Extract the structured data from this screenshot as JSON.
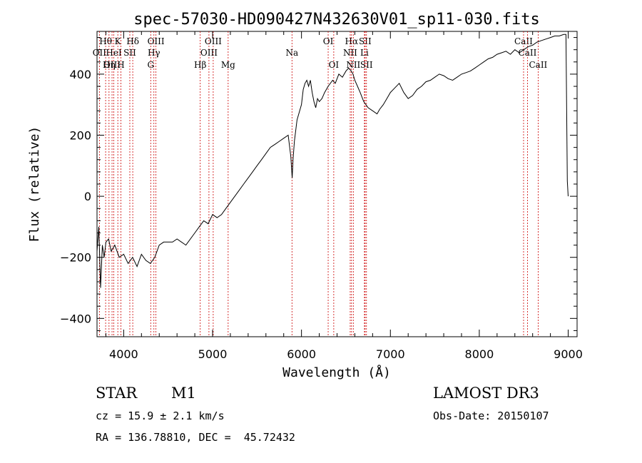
{
  "chart_data": {
    "type": "line",
    "title": "spec-57030-HD090427N432630V01_sp11-030.fits",
    "xlabel": "Wavelength (Å)",
    "ylabel": "Flux (relative)",
    "xlim": [
      3700,
      9100
    ],
    "ylim": [
      -460,
      540
    ],
    "x_ticks": [
      4000,
      5000,
      6000,
      7000,
      8000,
      9000
    ],
    "y_ticks": [
      -400,
      -200,
      0,
      200,
      400
    ],
    "grid": false,
    "line_color": "#000000",
    "marker_color": "#cc0000",
    "series": [
      {
        "x": [
          3700,
          3720,
          3740,
          3760,
          3780,
          3800,
          3830,
          3860,
          3900,
          3950,
          4000,
          4050,
          4100,
          4150,
          4200,
          4250,
          4300,
          4350,
          4400,
          4450,
          4500,
          4550,
          4600,
          4700,
          4800,
          4850,
          4900,
          4950,
          5000,
          5050,
          5100,
          5150,
          5200,
          5250,
          5300,
          5350,
          5400,
          5450,
          5500,
          5550,
          5600,
          5650,
          5700,
          5750,
          5800,
          5850,
          5880,
          5895,
          5905,
          5920,
          5950,
          6000,
          6020,
          6040,
          6060,
          6080,
          6100,
          6120,
          6140,
          6160,
          6180,
          6200,
          6230,
          6260,
          6300,
          6350,
          6380,
          6420,
          6460,
          6500,
          6530,
          6560,
          6580,
          6600,
          6630,
          6660,
          6700,
          6750,
          6800,
          6850,
          6880,
          6920,
          6960,
          7000,
          7050,
          7100,
          7150,
          7200,
          7250,
          7300,
          7350,
          7400,
          7450,
          7500,
          7550,
          7600,
          7650,
          7700,
          7750,
          7800,
          7850,
          7900,
          7950,
          8000,
          8050,
          8100,
          8150,
          8200,
          8250,
          8300,
          8350,
          8400,
          8450,
          8500,
          8550,
          8600,
          8650,
          8700,
          8750,
          8800,
          8850,
          8900,
          8950,
          8975,
          8985,
          8990,
          9000
        ],
        "y": [
          -180,
          -100,
          -300,
          -160,
          -200,
          -150,
          -140,
          -180,
          -160,
          -200,
          -190,
          -220,
          -200,
          -230,
          -190,
          -210,
          -220,
          -200,
          -160,
          -150,
          -150,
          -150,
          -140,
          -160,
          -120,
          -100,
          -80,
          -90,
          -60,
          -70,
          -60,
          -40,
          -20,
          0,
          20,
          40,
          60,
          80,
          100,
          120,
          140,
          160,
          170,
          180,
          190,
          200,
          130,
          60,
          120,
          180,
          250,
          300,
          350,
          370,
          380,
          360,
          380,
          340,
          310,
          290,
          320,
          310,
          320,
          340,
          360,
          380,
          370,
          400,
          390,
          410,
          420,
          410,
          400,
          380,
          360,
          340,
          310,
          290,
          280,
          270,
          285,
          300,
          320,
          340,
          355,
          370,
          340,
          320,
          330,
          350,
          360,
          375,
          380,
          390,
          400,
          395,
          385,
          380,
          390,
          400,
          405,
          410,
          420,
          430,
          440,
          450,
          455,
          465,
          470,
          475,
          465,
          480,
          470,
          480,
          490,
          495,
          505,
          510,
          515,
          520,
          525,
          525,
          530,
          530,
          200,
          50,
          0
        ]
      }
    ],
    "line_markers": [
      {
        "label": "Hθ",
        "x": 3797,
        "row": 1
      },
      {
        "label": "OII",
        "x": 3727,
        "row": 2
      },
      {
        "label": "OIII",
        "x": 3869,
        "row": 3
      },
      {
        "label": "HeI",
        "x": 3889,
        "row": 2
      },
      {
        "label": "Hη",
        "x": 3835,
        "row": 3
      },
      {
        "label": "K",
        "x": 3934,
        "row": 1
      },
      {
        "label": "SII",
        "x": 4069,
        "row": 2
      },
      {
        "label": "H",
        "x": 3969,
        "row": 3
      },
      {
        "label": "Hδ",
        "x": 4102,
        "row": 1
      },
      {
        "label": "OIII",
        "x": 4363,
        "row": 1
      },
      {
        "label": "Hγ",
        "x": 4340,
        "row": 2
      },
      {
        "label": "G",
        "x": 4304,
        "row": 3
      },
      {
        "label": "Hβ",
        "x": 4861,
        "row": 3
      },
      {
        "label": "OIII",
        "x": 5007,
        "row": 1
      },
      {
        "label": "OIII",
        "x": 4959,
        "row": 2
      },
      {
        "label": "Mg",
        "x": 5175,
        "row": 3
      },
      {
        "label": "Na",
        "x": 5893,
        "row": 2
      },
      {
        "label": "OI",
        "x": 6300,
        "row": 1
      },
      {
        "label": "OI",
        "x": 6363,
        "row": 3
      },
      {
        "label": "Hα",
        "x": 6563,
        "row": 1
      },
      {
        "label": "SII",
        "x": 6716,
        "row": 1
      },
      {
        "label": "NII",
        "x": 6548,
        "row": 2
      },
      {
        "label": "Li",
        "x": 6708,
        "row": 2
      },
      {
        "label": "NII",
        "x": 6583,
        "row": 3
      },
      {
        "label": "SII",
        "x": 6731,
        "row": 3
      },
      {
        "label": "CaII",
        "x": 8498,
        "row": 1
      },
      {
        "label": "CaII",
        "x": 8542,
        "row": 2
      },
      {
        "label": "CaII",
        "x": 8662,
        "row": 3
      }
    ]
  },
  "info": {
    "object_class": "STAR",
    "subclass": "M1",
    "survey": "LAMOST DR3",
    "cz": "cz = 15.9 ± 2.1 km/s",
    "obs_date": "Obs-Date: 20150107",
    "coords": "RA = 136.78810, DEC =  45.72432"
  }
}
